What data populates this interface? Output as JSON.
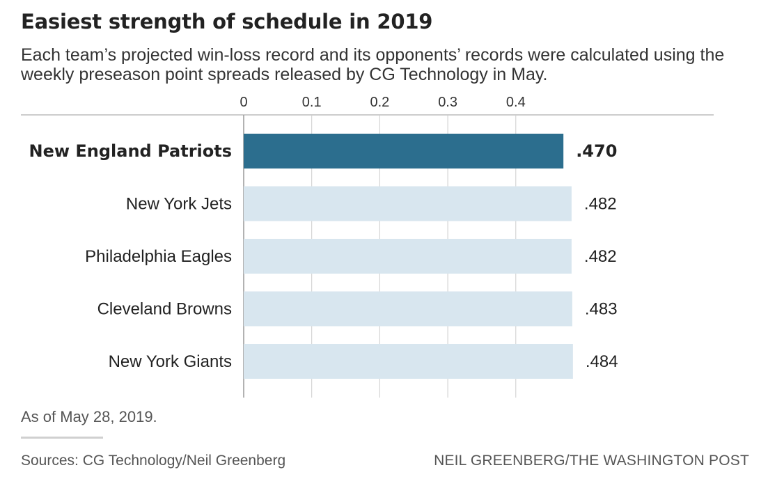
{
  "title": "Easiest strength of schedule in 2019",
  "subtitle": "Each team’s projected win-loss record and its opponents’ records were calculated using the weekly preseason point spreads released by CG Technology in May.",
  "note": "As of May 28, 2019.",
  "sources": "Sources: CG Technology/Neil Greenberg",
  "credit": "NEIL GREENBERG/THE WASHINGTON POST",
  "colors": {
    "highlight": "#2c6e8e",
    "bar": "#d8e6ef",
    "grid": "#cccccc",
    "axis": "#999999"
  },
  "chart_data": {
    "type": "bar",
    "orientation": "horizontal",
    "categories": [
      "New England Patriots",
      "New York Jets",
      "Philadelphia Eagles",
      "Cleveland Browns",
      "New York Giants"
    ],
    "values": [
      0.47,
      0.482,
      0.482,
      0.483,
      0.484
    ],
    "value_labels": [
      ".470",
      ".482",
      ".482",
      ".483",
      ".484"
    ],
    "highlighted": "New England Patriots",
    "xticks": [
      0,
      0.1,
      0.2,
      0.3,
      0.4
    ],
    "xtick_labels": [
      "0",
      "0.1",
      "0.2",
      "0.3",
      "0.4"
    ],
    "xlim": [
      0,
      0.5
    ],
    "grid": true,
    "legend": "none"
  }
}
